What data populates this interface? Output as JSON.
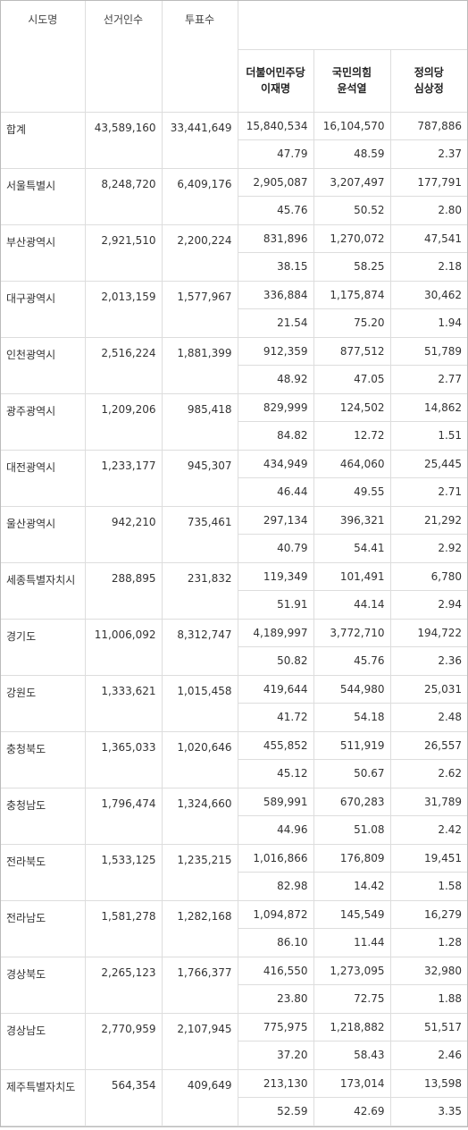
{
  "header": {
    "columns": [
      "시도명",
      "선거인수",
      "투표수"
    ],
    "candidates": [
      {
        "party": "더불어민주당",
        "name": "이재명"
      },
      {
        "party": "국민의힘",
        "name": "윤석열"
      },
      {
        "party": "정의당",
        "name": "심상정"
      }
    ]
  },
  "rows": [
    {
      "region": "합계",
      "electors": "43,589,160",
      "votes": "33,441,649",
      "counts": [
        "15,840,534",
        "16,104,570",
        "787,886"
      ],
      "percents": [
        "47.79",
        "48.59",
        "2.37"
      ]
    },
    {
      "region": "서울특별시",
      "electors": "8,248,720",
      "votes": "6,409,176",
      "counts": [
        "2,905,087",
        "3,207,497",
        "177,791"
      ],
      "percents": [
        "45.76",
        "50.52",
        "2.80"
      ]
    },
    {
      "region": "부산광역시",
      "electors": "2,921,510",
      "votes": "2,200,224",
      "counts": [
        "831,896",
        "1,270,072",
        "47,541"
      ],
      "percents": [
        "38.15",
        "58.25",
        "2.18"
      ]
    },
    {
      "region": "대구광역시",
      "electors": "2,013,159",
      "votes": "1,577,967",
      "counts": [
        "336,884",
        "1,175,874",
        "30,462"
      ],
      "percents": [
        "21.54",
        "75.20",
        "1.94"
      ]
    },
    {
      "region": "인천광역시",
      "electors": "2,516,224",
      "votes": "1,881,399",
      "counts": [
        "912,359",
        "877,512",
        "51,789"
      ],
      "percents": [
        "48.92",
        "47.05",
        "2.77"
      ]
    },
    {
      "region": "광주광역시",
      "electors": "1,209,206",
      "votes": "985,418",
      "counts": [
        "829,999",
        "124,502",
        "14,862"
      ],
      "percents": [
        "84.82",
        "12.72",
        "1.51"
      ]
    },
    {
      "region": "대전광역시",
      "electors": "1,233,177",
      "votes": "945,307",
      "counts": [
        "434,949",
        "464,060",
        "25,445"
      ],
      "percents": [
        "46.44",
        "49.55",
        "2.71"
      ]
    },
    {
      "region": "울산광역시",
      "electors": "942,210",
      "votes": "735,461",
      "counts": [
        "297,134",
        "396,321",
        "21,292"
      ],
      "percents": [
        "40.79",
        "54.41",
        "2.92"
      ]
    },
    {
      "region": "세종특별자치시",
      "electors": "288,895",
      "votes": "231,832",
      "counts": [
        "119,349",
        "101,491",
        "6,780"
      ],
      "percents": [
        "51.91",
        "44.14",
        "2.94"
      ]
    },
    {
      "region": "경기도",
      "electors": "11,006,092",
      "votes": "8,312,747",
      "counts": [
        "4,189,997",
        "3,772,710",
        "194,722"
      ],
      "percents": [
        "50.82",
        "45.76",
        "2.36"
      ]
    },
    {
      "region": "강원도",
      "electors": "1,333,621",
      "votes": "1,015,458",
      "counts": [
        "419,644",
        "544,980",
        "25,031"
      ],
      "percents": [
        "41.72",
        "54.18",
        "2.48"
      ]
    },
    {
      "region": "충청북도",
      "electors": "1,365,033",
      "votes": "1,020,646",
      "counts": [
        "455,852",
        "511,919",
        "26,557"
      ],
      "percents": [
        "45.12",
        "50.67",
        "2.62"
      ]
    },
    {
      "region": "충청남도",
      "electors": "1,796,474",
      "votes": "1,324,660",
      "counts": [
        "589,991",
        "670,283",
        "31,789"
      ],
      "percents": [
        "44.96",
        "51.08",
        "2.42"
      ]
    },
    {
      "region": "전라북도",
      "electors": "1,533,125",
      "votes": "1,235,215",
      "counts": [
        "1,016,866",
        "176,809",
        "19,451"
      ],
      "percents": [
        "82.98",
        "14.42",
        "1.58"
      ]
    },
    {
      "region": "전라남도",
      "electors": "1,581,278",
      "votes": "1,282,168",
      "counts": [
        "1,094,872",
        "145,549",
        "16,279"
      ],
      "percents": [
        "86.10",
        "11.44",
        "1.28"
      ]
    },
    {
      "region": "경상북도",
      "electors": "2,265,123",
      "votes": "1,766,377",
      "counts": [
        "416,550",
        "1,273,095",
        "32,980"
      ],
      "percents": [
        "23.80",
        "72.75",
        "1.88"
      ]
    },
    {
      "region": "경상남도",
      "electors": "2,770,959",
      "votes": "2,107,945",
      "counts": [
        "775,975",
        "1,218,882",
        "51,517"
      ],
      "percents": [
        "37.20",
        "58.43",
        "2.46"
      ]
    },
    {
      "region": "제주특별자치도",
      "electors": "564,354",
      "votes": "409,649",
      "counts": [
        "213,130",
        "173,014",
        "13,598"
      ],
      "percents": [
        "52.59",
        "42.69",
        "3.35"
      ]
    }
  ]
}
